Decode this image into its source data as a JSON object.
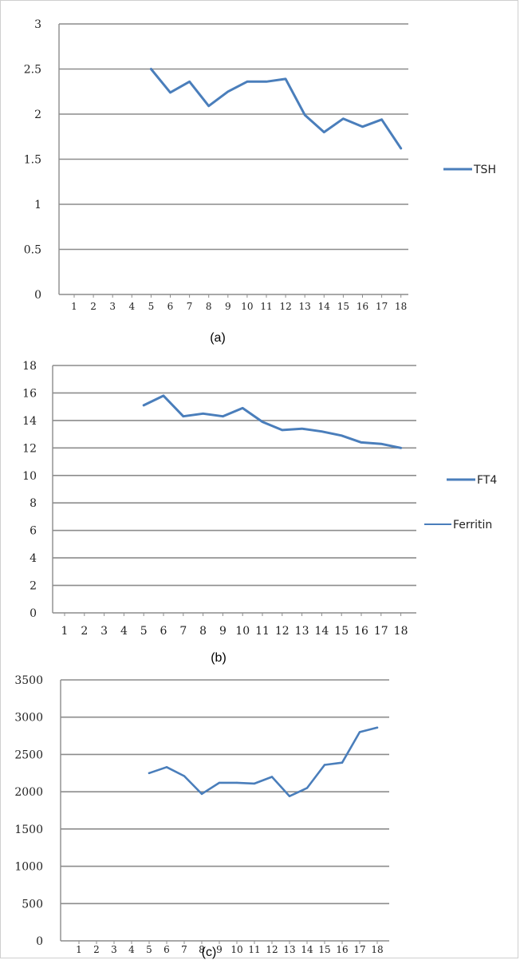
{
  "chart_data": [
    {
      "type": "line",
      "panel_label": "(a)",
      "categories": [
        "1",
        "2",
        "3",
        "4",
        "5",
        "6",
        "7",
        "8",
        "9",
        "10",
        "11",
        "12",
        "13",
        "14",
        "15",
        "16",
        "17",
        "18"
      ],
      "y_ticks": [
        "0",
        "0.5",
        "1",
        "1.5",
        "2",
        "2.5",
        "3"
      ],
      "ylim": [
        0,
        3
      ],
      "grid": true,
      "legend_position": "right",
      "line_color": "#4a7ebb",
      "series": [
        {
          "name": "TSH",
          "values": [
            null,
            null,
            null,
            null,
            2.5,
            2.24,
            2.36,
            2.09,
            2.25,
            2.36,
            2.36,
            2.39,
            1.99,
            1.8,
            1.95,
            1.86,
            1.94,
            1.62
          ]
        }
      ]
    },
    {
      "type": "line",
      "panel_label": "(b)",
      "categories": [
        "1",
        "2",
        "3",
        "4",
        "5",
        "6",
        "7",
        "8",
        "9",
        "10",
        "11",
        "12",
        "13",
        "14",
        "15",
        "16",
        "17",
        "18"
      ],
      "y_ticks": [
        "0",
        "2",
        "4",
        "6",
        "8",
        "10",
        "12",
        "14",
        "16",
        "18"
      ],
      "ylim": [
        0,
        18
      ],
      "grid": true,
      "legend_position": "right",
      "line_color": "#4a7ebb",
      "series": [
        {
          "name": "FT4",
          "values": [
            null,
            null,
            null,
            null,
            15.1,
            15.8,
            14.3,
            14.5,
            14.3,
            14.9,
            13.9,
            13.3,
            13.4,
            13.2,
            12.9,
            12.4,
            12.3,
            12.0
          ]
        }
      ]
    },
    {
      "type": "line",
      "panel_label": "(c)",
      "categories": [
        "1",
        "2",
        "3",
        "4",
        "5",
        "6",
        "7",
        "8",
        "9",
        "10",
        "11",
        "12",
        "13",
        "14",
        "15",
        "16",
        "17",
        "18"
      ],
      "y_ticks": [
        "0",
        "500",
        "1000",
        "1500",
        "2000",
        "2500",
        "3000",
        "3500"
      ],
      "ylim": [
        0,
        3500
      ],
      "grid": true,
      "legend_position": "right",
      "line_color": "#4a7ebb",
      "series": [
        {
          "name": "Ferritin",
          "values": [
            null,
            null,
            null,
            null,
            2250,
            2330,
            2210,
            1970,
            2120,
            2120,
            2110,
            2200,
            1940,
            2050,
            2360,
            2390,
            2800,
            2860
          ]
        }
      ]
    }
  ]
}
